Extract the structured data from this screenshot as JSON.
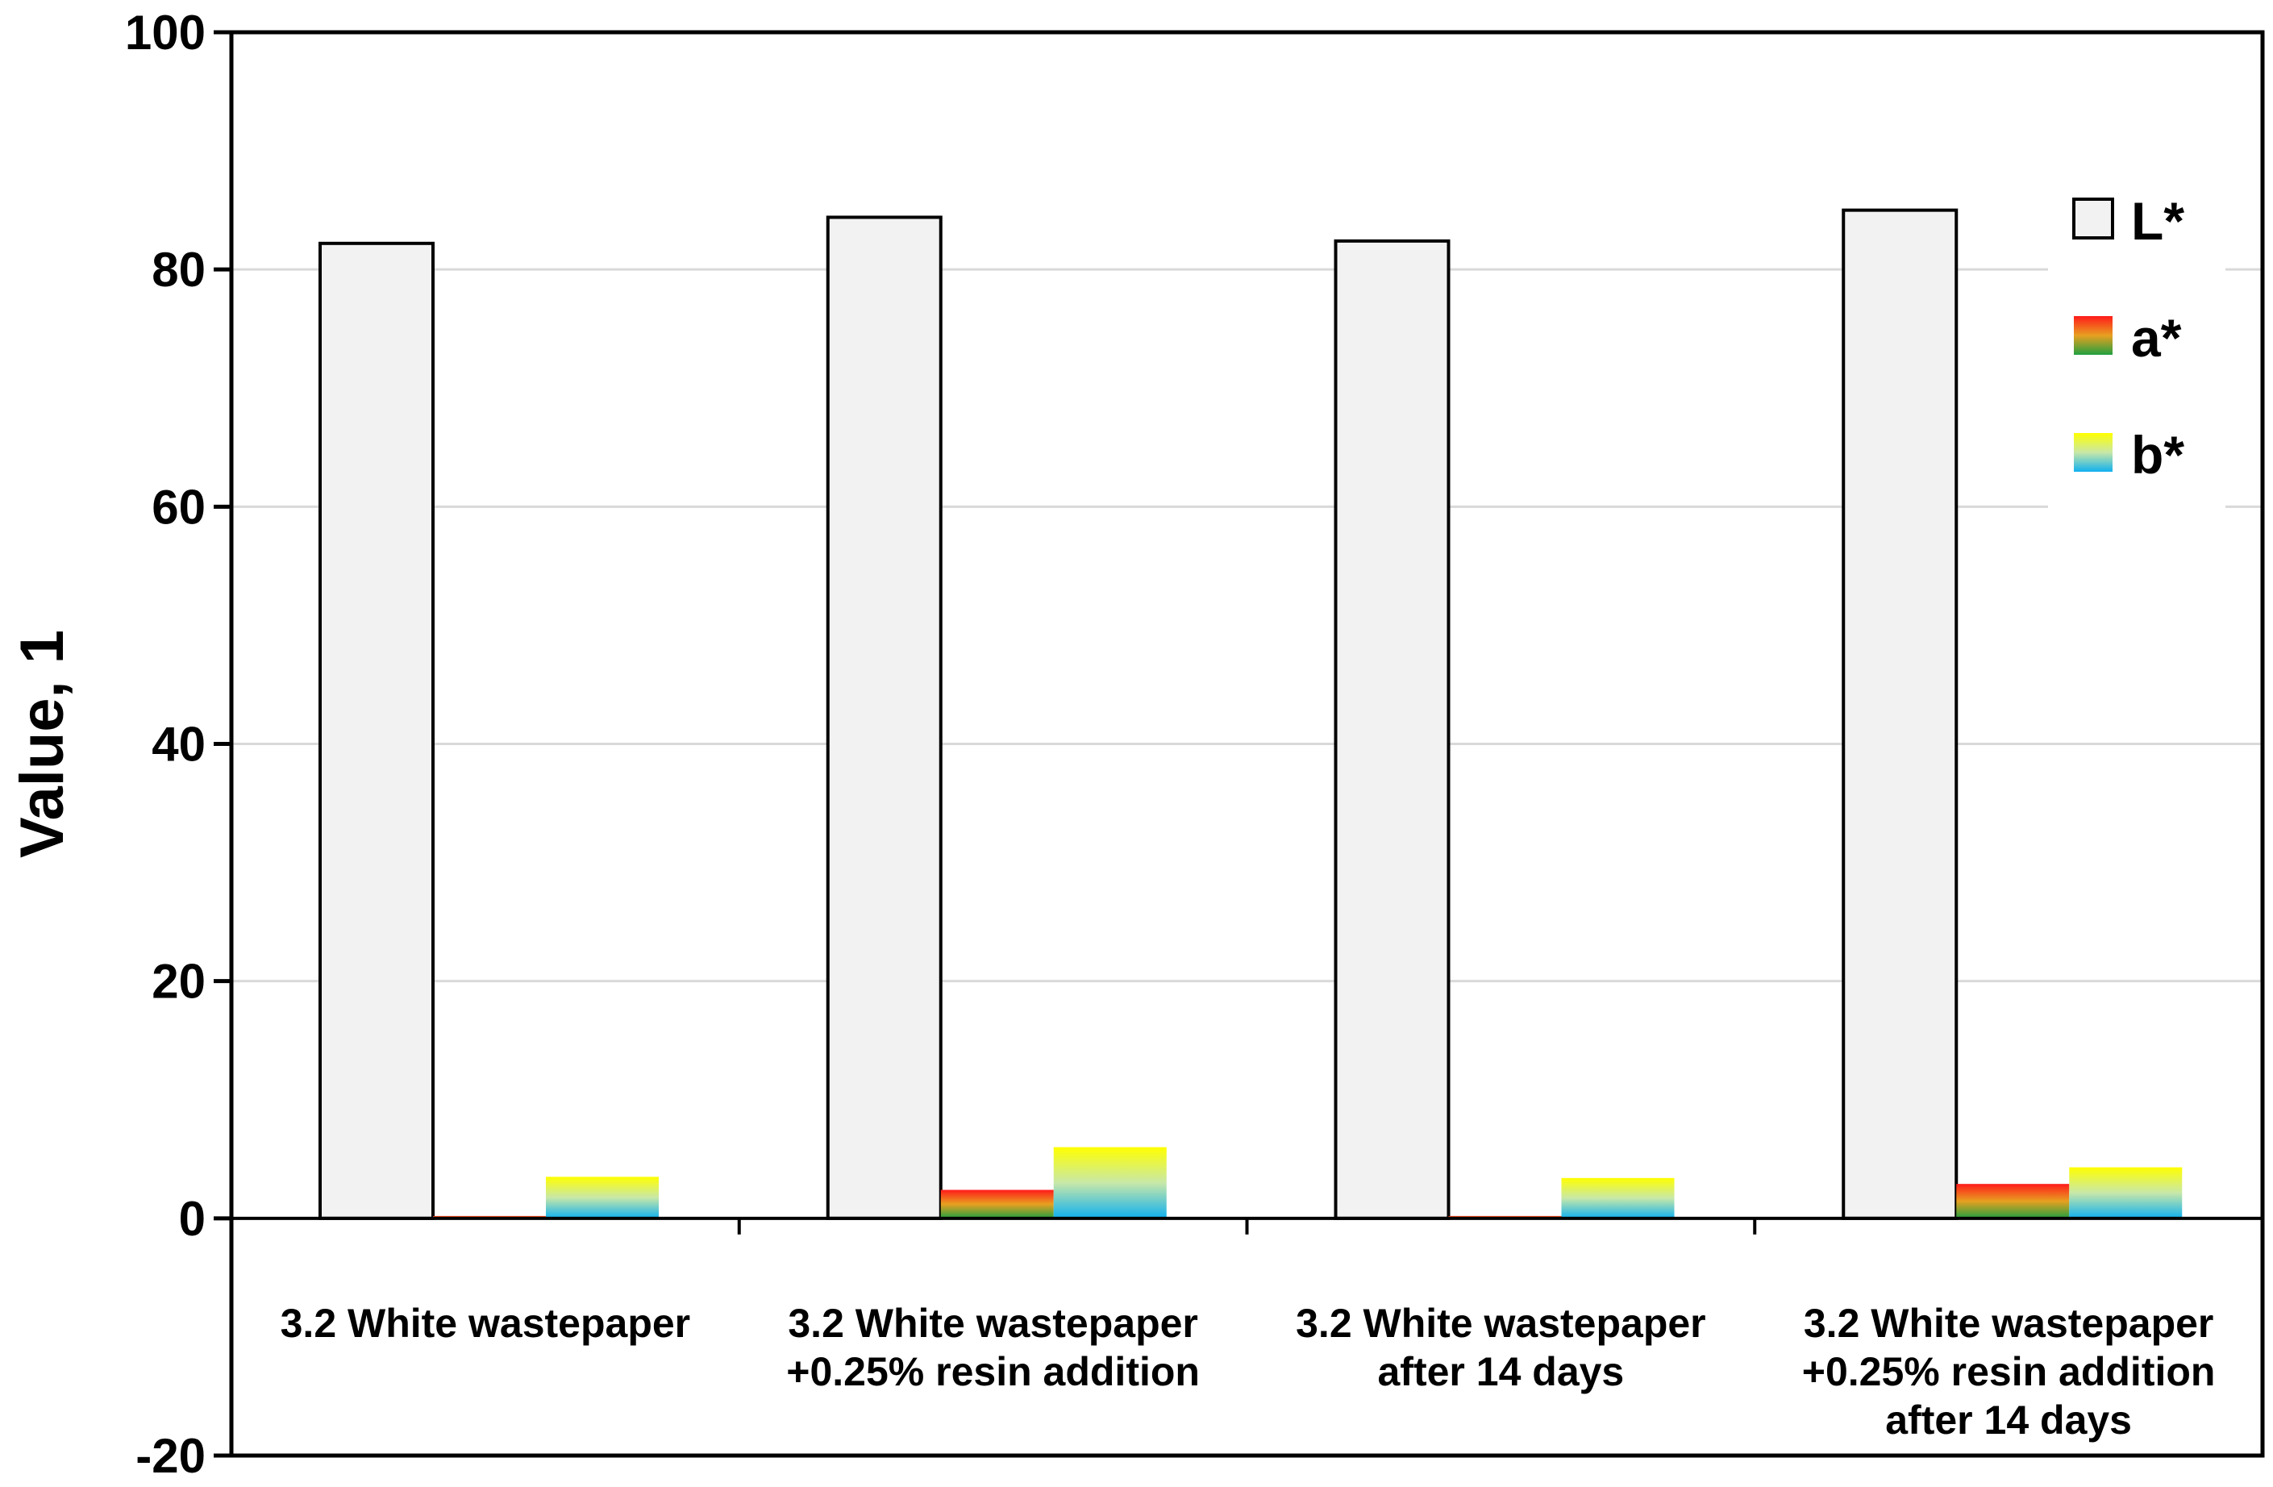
{
  "chart_data": {
    "type": "bar",
    "title": "",
    "xlabel": "",
    "ylabel": "Value, 1",
    "ylim": [
      -20,
      100
    ],
    "yticks": [
      -20,
      0,
      20,
      40,
      60,
      80,
      100
    ],
    "grid": true,
    "legend_position": "top-right",
    "categories": [
      [
        "3.2 White wastepaper"
      ],
      [
        "3.2 White wastepaper",
        "+0.25% resin addition"
      ],
      [
        "3.2 White wastepaper",
        "after 14 days"
      ],
      [
        "3.2 White wastepaper",
        "+0.25% resin addition",
        "after 14 days"
      ]
    ],
    "series": [
      {
        "name": "L*",
        "values": [
          82.2,
          84.4,
          82.4,
          85.0
        ],
        "color": "#f2f2f2"
      },
      {
        "name": "a*",
        "values": [
          0.2,
          2.4,
          0.2,
          2.9
        ],
        "color": "#ff0000"
      },
      {
        "name": "b*",
        "values": [
          3.5,
          6.0,
          3.4,
          4.3
        ],
        "color": "#ffff00"
      }
    ]
  }
}
